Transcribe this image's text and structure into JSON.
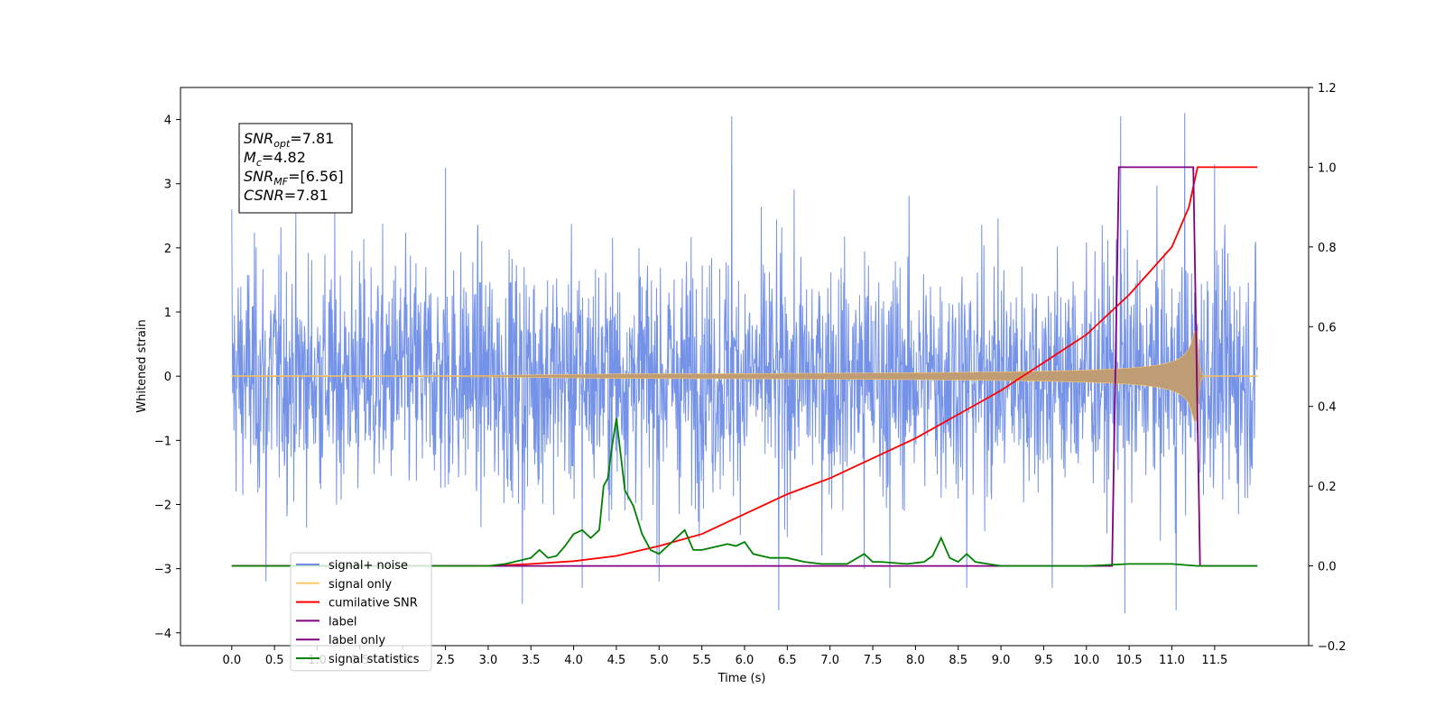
{
  "chart_data": {
    "type": "line",
    "xlabel": "Time (s)",
    "ylabel": "Whitened strain",
    "xlim": [
      -0.6,
      12.6
    ],
    "ylim": [
      -4.2,
      4.5
    ],
    "y2lim": [
      -0.2,
      1.2
    ],
    "x_ticks": [
      0.0,
      0.5,
      1.0,
      1.5,
      2.0,
      2.5,
      3.0,
      3.5,
      4.0,
      4.5,
      5.0,
      5.5,
      6.0,
      6.5,
      7.0,
      7.5,
      8.0,
      8.5,
      9.0,
      9.5,
      10.0,
      10.5,
      11.0,
      11.5
    ],
    "x_tick_labels": [
      "0.0",
      "0.5",
      "1.0",
      "1.5",
      "2.0",
      "2.5",
      "3.0",
      "3.5",
      "4.0",
      "4.5",
      "5.0",
      "5.5",
      "6.0",
      "6.5",
      "7.0",
      "7.5",
      "8.0",
      "8.5",
      "9.0",
      "9.5",
      "10.0",
      "10.5",
      "11.0",
      "11.5"
    ],
    "y_ticks": [
      -4,
      -3,
      -2,
      -1,
      0,
      1,
      2,
      3,
      4
    ],
    "y_tick_labels": [
      "−4",
      "−3",
      "−2",
      "−1",
      "0",
      "1",
      "2",
      "3",
      "4"
    ],
    "y2_ticks": [
      -0.2,
      0.0,
      0.2,
      0.4,
      0.6,
      0.8,
      1.0,
      1.2
    ],
    "y2_tick_labels": [
      "−0.2",
      "0.0",
      "0.2",
      "0.4",
      "0.6",
      "0.8",
      "1.0",
      "1.2"
    ],
    "info_box": {
      "lines": [
        {
          "base": "SNR",
          "sub": "opt",
          "value": "=7.81"
        },
        {
          "base": "M",
          "sub": "c",
          "value": "=4.82"
        },
        {
          "base": "SNR",
          "sub": "MF",
          "value": "=[6.56]"
        },
        {
          "base": "CSNR",
          "sub": "",
          "value": "=7.81"
        }
      ]
    },
    "legend": {
      "placement": "lower-left",
      "entries": [
        {
          "label": "signal+ noise",
          "color": "#6d8ce6"
        },
        {
          "label": "signal only",
          "color": "#ffc966"
        },
        {
          "label": "cumilative SNR",
          "color": "#ff0000"
        },
        {
          "label": "label",
          "color": "#800080"
        },
        {
          "label": "label only",
          "color": "#800080"
        },
        {
          "label": "signal statistics",
          "color": "#008000"
        }
      ]
    },
    "series": [
      {
        "name": "signal+ noise",
        "axis": "left",
        "color": "#6d8ce6",
        "style": "noise",
        "x_range": [
          0.0,
          12.0
        ],
        "envelope_typical": 2.4,
        "spikes": [
          [
            0.0,
            2.6
          ],
          [
            0.4,
            -3.2
          ],
          [
            2.5,
            3.25
          ],
          [
            3.4,
            -3.55
          ],
          [
            4.1,
            -3.3
          ],
          [
            5.0,
            -3.2
          ],
          [
            5.85,
            4.05
          ],
          [
            6.4,
            -3.65
          ],
          [
            7.4,
            -3.0
          ],
          [
            7.7,
            -3.3
          ],
          [
            8.6,
            -3.3
          ],
          [
            9.6,
            -3.3
          ],
          [
            10.4,
            4.05
          ],
          [
            10.45,
            -3.7
          ],
          [
            11.05,
            -3.65
          ],
          [
            11.15,
            4.1
          ],
          [
            11.5,
            3.3
          ]
        ]
      },
      {
        "name": "signal only",
        "axis": "left",
        "color": "#ffc966",
        "style": "chirp",
        "x_range": [
          0.0,
          12.0
        ],
        "merger_time": 11.3,
        "peak_amplitude": 0.7
      },
      {
        "name": "cumilative SNR",
        "axis": "right",
        "color": "#ff0000",
        "x": [
          0.0,
          3.0,
          3.5,
          4.0,
          4.5,
          5.0,
          5.5,
          6.0,
          6.5,
          7.0,
          7.5,
          8.0,
          8.5,
          9.0,
          9.5,
          10.0,
          10.5,
          11.0,
          11.2,
          11.3,
          12.0
        ],
        "y": [
          0.0,
          0.0,
          0.005,
          0.012,
          0.025,
          0.05,
          0.08,
          0.13,
          0.18,
          0.22,
          0.27,
          0.32,
          0.38,
          0.44,
          0.51,
          0.58,
          0.68,
          0.8,
          0.9,
          1.0,
          1.0
        ]
      },
      {
        "name": "label",
        "axis": "right",
        "color": "#800080",
        "x": [
          0.0,
          10.3,
          10.38,
          11.25,
          11.33,
          12.0
        ],
        "y": [
          0.0,
          0.0,
          1.0,
          1.0,
          0.0,
          0.0
        ]
      },
      {
        "name": "signal statistics",
        "axis": "right",
        "color": "#008000",
        "x": [
          0.0,
          3.0,
          3.2,
          3.5,
          3.6,
          3.7,
          3.8,
          3.9,
          4.0,
          4.1,
          4.2,
          4.3,
          4.35,
          4.4,
          4.45,
          4.5,
          4.55,
          4.6,
          4.7,
          4.8,
          4.9,
          5.0,
          5.1,
          5.2,
          5.3,
          5.4,
          5.5,
          5.7,
          5.8,
          5.9,
          6.0,
          6.1,
          6.2,
          6.3,
          6.5,
          6.7,
          6.9,
          7.2,
          7.4,
          7.5,
          7.6,
          7.9,
          8.1,
          8.2,
          8.3,
          8.4,
          8.5,
          8.6,
          8.7,
          9.0,
          10.0,
          10.5,
          11.0,
          11.3,
          11.5,
          12.0
        ],
        "y": [
          0.0,
          0.0,
          0.005,
          0.02,
          0.04,
          0.02,
          0.025,
          0.05,
          0.08,
          0.09,
          0.07,
          0.09,
          0.2,
          0.22,
          0.3,
          0.37,
          0.28,
          0.19,
          0.15,
          0.08,
          0.04,
          0.03,
          0.05,
          0.07,
          0.09,
          0.04,
          0.04,
          0.05,
          0.055,
          0.05,
          0.06,
          0.03,
          0.025,
          0.02,
          0.02,
          0.01,
          0.005,
          0.005,
          0.03,
          0.01,
          0.01,
          0.005,
          0.01,
          0.025,
          0.07,
          0.02,
          0.01,
          0.03,
          0.01,
          0.0,
          0.0,
          0.005,
          0.005,
          0.0,
          0.0,
          0.0
        ]
      }
    ]
  }
}
